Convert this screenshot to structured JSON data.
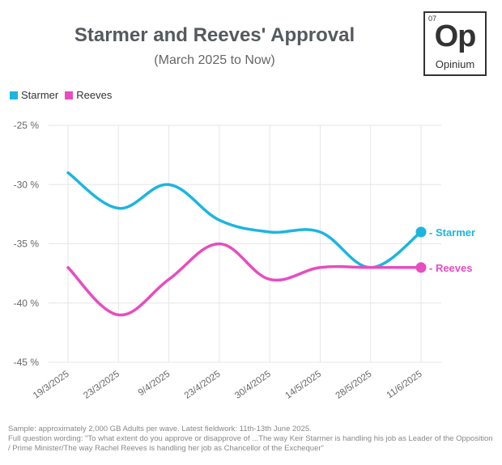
{
  "header": {
    "title": "Starmer and Reeves' Approval",
    "subtitle": "(March 2025 to Now)"
  },
  "logo": {
    "number": "07",
    "symbol": "Op",
    "name": "Opinium"
  },
  "footnote": {
    "line1": "Sample: approximately 2,000 GB Adults per wave. Latest fieldwork: 11th-13th June 2025.",
    "line2": "Full question wording: \"To what extent do you approve or disapprove of ...The way Keir Starmer is handling his job as Leader of the Opposition / Prime Minister/The way Rachel Reeves is handling her job as Chancellor of the Exchequer\""
  },
  "chart_data": {
    "type": "line",
    "title": "Starmer and Reeves' Approval",
    "subtitle": "(March 2025 to Now)",
    "xlabel": "",
    "ylabel": "",
    "categories": [
      "19/3/2025",
      "23/3/2025",
      "9/4/2025",
      "23/4/2025",
      "30/4/2025",
      "14/5/2025",
      "28/5/2025",
      "11/6/2025"
    ],
    "yticks": [
      -25,
      -30,
      -35,
      -40,
      -45
    ],
    "ytick_labels": [
      "-25 %",
      "-30 %",
      "-35 %",
      "-40 %",
      "-45 %"
    ],
    "ylim": [
      -45,
      -25
    ],
    "grid": true,
    "legend": "top-left",
    "series": [
      {
        "name": "Starmer",
        "color": "#1cb5e0",
        "values": [
          -29,
          -32,
          -30,
          -33,
          -34,
          -34,
          -37,
          -34
        ],
        "end_label": "- Starmer"
      },
      {
        "name": "Reeves",
        "color": "#e84cbf",
        "values": [
          -37,
          -41,
          -38,
          -35,
          -38,
          -37,
          -37,
          -37
        ],
        "end_label": "- Reeves"
      }
    ]
  }
}
